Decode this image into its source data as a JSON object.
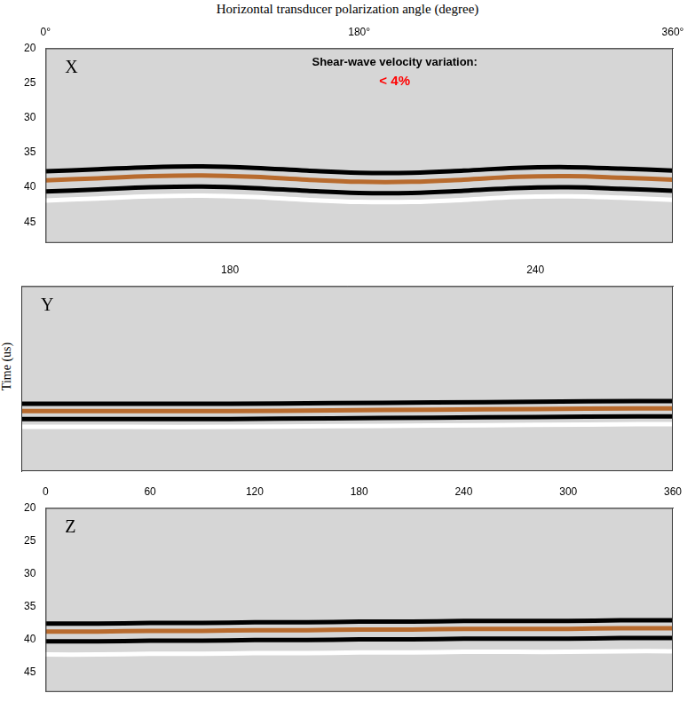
{
  "chart_data": [
    {
      "type": "line",
      "label": "X",
      "x_label": "Horizontal transducer polarization angle (degree)",
      "annotations": [
        {
          "text": "Shear-wave velocity variation:",
          "color": "#000000"
        },
        {
          "text": "< 4%",
          "color": "#ff0000"
        }
      ],
      "x": [
        0,
        30,
        60,
        90,
        120,
        150,
        180,
        210,
        240,
        270,
        300,
        330,
        360
      ],
      "xlim": [
        0,
        360
      ],
      "xticks": [
        {
          "value": 0,
          "label": "0°"
        },
        {
          "value": 180,
          "label": "180°"
        },
        {
          "value": 360,
          "label": "360°"
        }
      ],
      "ylim": [
        20,
        48
      ],
      "yticks": [
        20,
        25,
        30,
        35,
        40,
        45
      ],
      "grid": false,
      "tick_labels": true,
      "series": [
        {
          "color": "#ffffff",
          "values": [
            41.9,
            41.6,
            41.3,
            41.2,
            41.4,
            41.8,
            42.1,
            42.1,
            41.8,
            41.4,
            41.3,
            41.5,
            41.8
          ]
        },
        {
          "color": "#000000",
          "values": [
            37.7,
            37.4,
            37.1,
            37.0,
            37.2,
            37.6,
            37.9,
            37.9,
            37.6,
            37.2,
            37.1,
            37.3,
            37.6
          ]
        },
        {
          "color": "#000000",
          "values": [
            40.6,
            40.3,
            40.0,
            39.9,
            40.1,
            40.5,
            40.8,
            40.8,
            40.5,
            40.1,
            40.0,
            40.2,
            40.5
          ]
        },
        {
          "color": "#b86b2e",
          "values": [
            39.0,
            38.7,
            38.4,
            38.3,
            38.5,
            38.9,
            39.2,
            39.2,
            38.9,
            38.5,
            38.4,
            38.6,
            38.9
          ]
        }
      ]
    },
    {
      "type": "line",
      "label": "Y",
      "y_label": "Time (us)",
      "x": [
        139,
        160,
        180,
        200,
        220,
        240,
        260,
        267
      ],
      "xlim": [
        139,
        267
      ],
      "xticks": [
        180,
        240
      ],
      "ylim": [
        20,
        48
      ],
      "grid": false,
      "tick_labels": "x",
      "series": [
        {
          "color": "#ffffff",
          "values": [
            41.3,
            41.3,
            41.3,
            41.2,
            41.1,
            41.0,
            40.9,
            40.9
          ]
        },
        {
          "color": "#000000",
          "values": [
            37.8,
            37.8,
            37.8,
            37.7,
            37.6,
            37.5,
            37.4,
            37.4
          ]
        },
        {
          "color": "#000000",
          "values": [
            40.1,
            40.1,
            40.1,
            40.0,
            39.9,
            39.8,
            39.7,
            39.7
          ]
        },
        {
          "color": "#b86b2e",
          "values": [
            38.9,
            38.9,
            38.9,
            38.8,
            38.7,
            38.6,
            38.5,
            38.5
          ]
        }
      ]
    },
    {
      "type": "line",
      "label": "Z",
      "x": [
        0,
        30,
        60,
        90,
        120,
        150,
        180,
        210,
        240,
        270,
        300,
        330,
        360
      ],
      "xlim": [
        0,
        360
      ],
      "xticks": [
        0,
        60,
        120,
        180,
        240,
        300,
        360
      ],
      "ylim": [
        20,
        48
      ],
      "yticks": [
        20,
        25,
        30,
        35,
        40,
        45
      ],
      "grid": false,
      "tick_labels": true,
      "series": [
        {
          "color": "#ffffff",
          "values": [
            42.3,
            42.3,
            42.2,
            42.2,
            42.1,
            42.1,
            42.0,
            42.0,
            41.9,
            41.9,
            41.9,
            41.8,
            41.8
          ]
        },
        {
          "color": "#000000",
          "values": [
            37.6,
            37.6,
            37.5,
            37.5,
            37.4,
            37.4,
            37.3,
            37.3,
            37.2,
            37.2,
            37.2,
            37.1,
            37.1
          ]
        },
        {
          "color": "#000000",
          "values": [
            40.3,
            40.3,
            40.2,
            40.2,
            40.1,
            40.1,
            40.0,
            40.0,
            39.9,
            39.9,
            39.9,
            39.8,
            39.8
          ]
        },
        {
          "color": "#b86b2e",
          "values": [
            38.8,
            38.8,
            38.7,
            38.7,
            38.6,
            38.6,
            38.5,
            38.5,
            38.4,
            38.4,
            38.4,
            38.3,
            38.3
          ]
        }
      ]
    }
  ]
}
